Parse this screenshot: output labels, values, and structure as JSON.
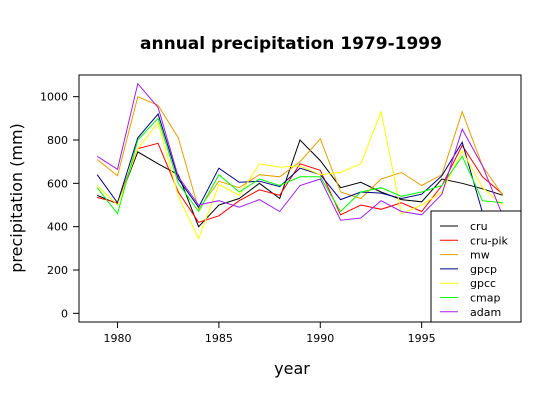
{
  "chart_data": {
    "type": "line",
    "title": "annual precipitation 1979-1999",
    "xlabel": "year",
    "ylabel": "precipitation (mm)",
    "xlim": [
      1978.1,
      1999.9
    ],
    "ylim": [
      -40,
      1100
    ],
    "xticks": [
      1980,
      1985,
      1990,
      1995
    ],
    "yticks": [
      0,
      200,
      400,
      600,
      800,
      1000
    ],
    "legend_position": "bottom-right",
    "grid": false,
    "x": [
      1979,
      1980,
      1981,
      1982,
      1983,
      1984,
      1985,
      1986,
      1987,
      1988,
      1989,
      1990,
      1991,
      1992,
      1993,
      1994,
      1995,
      1996,
      1997,
      1998,
      1999
    ],
    "series": [
      {
        "name": "cru",
        "color": "#000000",
        "values": [
          545,
          505,
          745,
          690,
          640,
          400,
          500,
          530,
          600,
          530,
          800,
          705,
          580,
          605,
          560,
          525,
          515,
          620,
          600,
          575,
          545
        ]
      },
      {
        "name": "cru-pik",
        "color": "#ff0000",
        "values": [
          535,
          510,
          760,
          785,
          560,
          420,
          450,
          520,
          570,
          545,
          690,
          660,
          455,
          500,
          480,
          510,
          470,
          590,
          775,
          630,
          550
        ]
      },
      {
        "name": "mw",
        "color": "#e69f00",
        "values": [
          710,
          635,
          1000,
          960,
          810,
          480,
          610,
          580,
          640,
          630,
          700,
          805,
          560,
          530,
          620,
          650,
          590,
          640,
          930,
          680,
          545
        ]
      },
      {
        "name": "gpcp",
        "color": "#00008b",
        "values": [
          640,
          510,
          810,
          920,
          620,
          490,
          670,
          605,
          610,
          585,
          670,
          640,
          525,
          560,
          555,
          530,
          550,
          635,
          790,
          465,
          445
        ]
      },
      {
        "name": "gpcc",
        "color": "#ffff00",
        "values": [
          590,
          500,
          760,
          880,
          540,
          345,
          595,
          545,
          690,
          675,
          680,
          640,
          650,
          690,
          930,
          460,
          500,
          560,
          750,
          580,
          500
        ]
      },
      {
        "name": "cmap",
        "color": "#00ff00",
        "values": [
          580,
          460,
          800,
          900,
          600,
          470,
          640,
          560,
          620,
          590,
          630,
          630,
          470,
          560,
          580,
          540,
          560,
          590,
          725,
          520,
          510
        ]
      },
      {
        "name": "adam",
        "color": "#a020f0",
        "values": [
          725,
          665,
          1060,
          950,
          630,
          500,
          520,
          490,
          525,
          470,
          590,
          620,
          430,
          440,
          520,
          470,
          455,
          550,
          850,
          680,
          450
        ]
      }
    ]
  }
}
